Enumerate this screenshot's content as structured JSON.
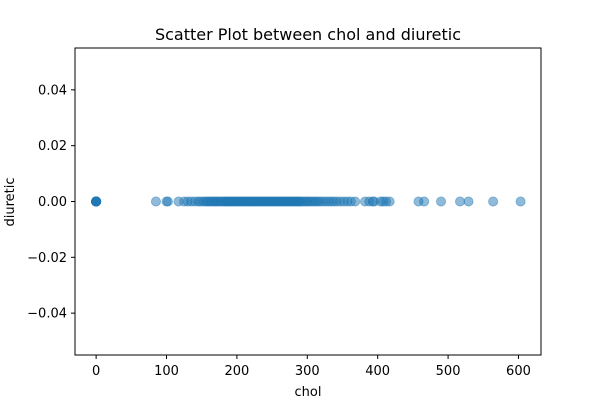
{
  "chart_data": {
    "type": "scatter",
    "title": "Scatter Plot between chol and diuretic",
    "xlabel": "chol",
    "ylabel": "diuretic",
    "xlim": [
      -30,
      632
    ],
    "ylim": [
      -0.055,
      0.055
    ],
    "xticks": [
      0,
      100,
      200,
      300,
      400,
      500,
      600
    ],
    "yticks": [
      -0.04,
      -0.02,
      0.0,
      0.02,
      0.04
    ],
    "ytick_labels": [
      "−0.04",
      "−0.02",
      "0.00",
      "0.02",
      "0.04"
    ],
    "grid": false,
    "point_color": "#1f77b4",
    "point_alpha": 0.5,
    "series": [
      {
        "x": [
          0,
          0,
          0,
          0,
          0,
          0,
          0,
          0,
          0,
          0,
          0,
          0,
          85,
          100,
          102,
          117,
          125,
          130,
          135,
          140,
          145,
          148,
          152,
          155,
          158,
          160,
          163,
          165,
          168,
          170,
          172,
          175,
          177,
          180,
          182,
          184,
          186,
          188,
          190,
          192,
          194,
          196,
          198,
          200,
          202,
          204,
          206,
          208,
          210,
          212,
          214,
          216,
          218,
          220,
          222,
          224,
          226,
          228,
          230,
          232,
          234,
          236,
          238,
          240,
          242,
          244,
          246,
          248,
          250,
          252,
          254,
          256,
          258,
          260,
          262,
          264,
          266,
          268,
          270,
          272,
          274,
          276,
          278,
          280,
          282,
          284,
          286,
          288,
          290,
          292,
          295,
          298,
          300,
          303,
          306,
          309,
          312,
          315,
          318,
          322,
          326,
          330,
          334,
          338,
          342,
          347,
          352,
          357,
          362,
          368,
          382,
          388,
          393,
          395,
          404,
          408,
          412,
          417,
          458,
          466,
          490,
          517,
          529,
          564,
          603
        ],
        "y": [
          0,
          0,
          0,
          0,
          0,
          0,
          0,
          0,
          0,
          0,
          0,
          0,
          0,
          0,
          0,
          0,
          0,
          0,
          0,
          0,
          0,
          0,
          0,
          0,
          0,
          0,
          0,
          0,
          0,
          0,
          0,
          0,
          0,
          0,
          0,
          0,
          0,
          0,
          0,
          0,
          0,
          0,
          0,
          0,
          0,
          0,
          0,
          0,
          0,
          0,
          0,
          0,
          0,
          0,
          0,
          0,
          0,
          0,
          0,
          0,
          0,
          0,
          0,
          0,
          0,
          0,
          0,
          0,
          0,
          0,
          0,
          0,
          0,
          0,
          0,
          0,
          0,
          0,
          0,
          0,
          0,
          0,
          0,
          0,
          0,
          0,
          0,
          0,
          0,
          0,
          0,
          0,
          0,
          0,
          0,
          0,
          0,
          0,
          0,
          0,
          0,
          0,
          0,
          0,
          0,
          0,
          0,
          0,
          0,
          0,
          0,
          0,
          0,
          0,
          0,
          0,
          0,
          0,
          0,
          0,
          0,
          0,
          0,
          0,
          0
        ]
      }
    ]
  }
}
